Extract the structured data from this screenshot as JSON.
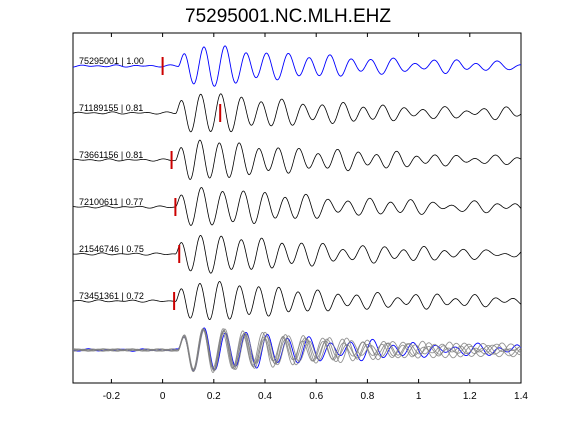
{
  "chart_data": {
    "type": "line",
    "title": "75295001.NC.MLH.EHZ",
    "xlabel": "",
    "ylabel": "",
    "xlim": [
      -0.35,
      1.4
    ],
    "x_ticks": [
      -0.2,
      0,
      0.2,
      0.4,
      0.6,
      0.8,
      1,
      1.2,
      1.4
    ],
    "x_tick_labels": [
      "-0.2",
      "0",
      "0.2",
      "0.4",
      "0.6",
      "0.8",
      "1",
      "1.2",
      "1.4"
    ],
    "grid": false,
    "colors": {
      "reference": "#0000ff",
      "trace": "#000000",
      "overlay": "#808080",
      "pick": "#cc0000"
    },
    "traces": [
      {
        "label": "75295001 | 1.00",
        "pick_time": 0.0,
        "reference": true
      },
      {
        "label": "71189155 | 0.81",
        "pick_time": 0.225,
        "reference": false
      },
      {
        "label": "73661156 | 0.81",
        "pick_time": 0.035,
        "reference": false
      },
      {
        "label": "72100611 | 0.77",
        "pick_time": 0.05,
        "reference": false
      },
      {
        "label": "21546746 | 0.75",
        "pick_time": 0.065,
        "reference": false
      },
      {
        "label": "73451361 | 0.72",
        "pick_time": 0.045,
        "reference": false
      }
    ],
    "stack": {
      "description_free": true,
      "overlay_count": 6
    }
  }
}
